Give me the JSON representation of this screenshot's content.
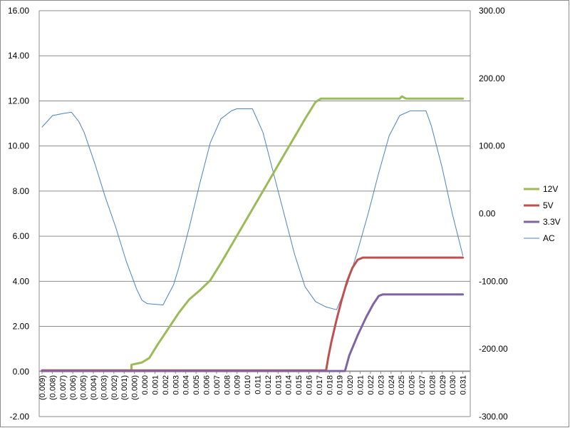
{
  "chart_data": {
    "type": "line",
    "title": "",
    "xlabel": "",
    "ylabel": "",
    "grid": true,
    "legend_position": "right",
    "y_left": {
      "range": [
        -2,
        16
      ],
      "ticks": [
        -2,
        0,
        2,
        4,
        6,
        8,
        10,
        12,
        14,
        16
      ],
      "tick_labels": [
        "-2.00",
        "0.00",
        "2.00",
        "4.00",
        "6.00",
        "8.00",
        "10.00",
        "12.00",
        "14.00",
        "16.00"
      ]
    },
    "y_right": {
      "range": [
        -300,
        300
      ],
      "ticks": [
        -300,
        -200,
        -100,
        0,
        100,
        200,
        300
      ],
      "tick_labels": [
        "-300.00",
        "-200.00",
        "-100.00",
        "0.00",
        "100.00",
        "200.00",
        "300.00"
      ]
    },
    "x": {
      "range": [
        -0.009,
        0.031
      ],
      "tick_labels": [
        "(0.009)",
        "(0.008)",
        "(0.007)",
        "(0.006)",
        "(0.005)",
        "(0.004)",
        "(0.003)",
        "(0.002)",
        "(0.001)",
        "(0.000)",
        "0.000",
        "0.001",
        "0.002",
        "0.003",
        "0.004",
        "0.005",
        "0.006",
        "0.007",
        "0.008",
        "0.009",
        "0.010",
        "0.011",
        "0.012",
        "0.013",
        "0.014",
        "0.015",
        "0.016",
        "0.017",
        "0.018",
        "0.019",
        "0.020",
        "0.021",
        "0.022",
        "0.023",
        "0.024",
        "0.025",
        "0.026",
        "0.027",
        "0.028",
        "0.029",
        "0.030",
        "0.031"
      ]
    },
    "series": [
      {
        "name": "12V",
        "axis": "left",
        "color": "#9bbb59",
        "width": 3,
        "points": [
          [
            -0.009,
            0.05
          ],
          [
            -0.0005,
            0.05
          ],
          [
            -0.0005,
            0.3
          ],
          [
            0.0005,
            0.4
          ],
          [
            0.0012,
            0.6
          ],
          [
            0.002,
            1.2
          ],
          [
            0.003,
            1.9
          ],
          [
            0.004,
            2.6
          ],
          [
            0.005,
            3.2
          ],
          [
            0.006,
            3.6
          ],
          [
            0.007,
            4.05
          ],
          [
            0.008,
            4.8
          ],
          [
            0.009,
            5.6
          ],
          [
            0.01,
            6.4
          ],
          [
            0.011,
            7.2
          ],
          [
            0.012,
            8.0
          ],
          [
            0.013,
            8.8
          ],
          [
            0.014,
            9.6
          ],
          [
            0.015,
            10.4
          ],
          [
            0.016,
            11.2
          ],
          [
            0.017,
            11.95
          ],
          [
            0.0175,
            12.1
          ],
          [
            0.025,
            12.1
          ],
          [
            0.0252,
            12.2
          ],
          [
            0.0256,
            12.1
          ],
          [
            0.031,
            12.1
          ]
        ]
      },
      {
        "name": "5V",
        "axis": "left",
        "color": "#c0504d",
        "width": 3,
        "points": [
          [
            -0.009,
            0.05
          ],
          [
            0.018,
            0.05
          ],
          [
            0.0182,
            0.6
          ],
          [
            0.0185,
            1.3
          ],
          [
            0.019,
            2.3
          ],
          [
            0.0195,
            3.2
          ],
          [
            0.02,
            4.0
          ],
          [
            0.0205,
            4.6
          ],
          [
            0.021,
            4.95
          ],
          [
            0.0215,
            5.05
          ],
          [
            0.031,
            5.05
          ]
        ]
      },
      {
        "name": "3.3V",
        "axis": "left",
        "color": "#8064a2",
        "width": 3,
        "points": [
          [
            -0.009,
            0.02
          ],
          [
            0.0198,
            0.02
          ],
          [
            0.0202,
            0.7
          ],
          [
            0.021,
            1.6
          ],
          [
            0.0218,
            2.4
          ],
          [
            0.0225,
            3.0
          ],
          [
            0.023,
            3.35
          ],
          [
            0.0234,
            3.42
          ],
          [
            0.031,
            3.42
          ]
        ]
      },
      {
        "name": "AC",
        "axis": "right",
        "color": "#4f81bd",
        "width": 1,
        "points": [
          [
            -0.009,
            128
          ],
          [
            -0.008,
            145
          ],
          [
            -0.007,
            148
          ],
          [
            -0.0062,
            150
          ],
          [
            -0.0055,
            136
          ],
          [
            -0.005,
            120
          ],
          [
            -0.004,
            75
          ],
          [
            -0.003,
            25
          ],
          [
            -0.002,
            -20
          ],
          [
            -0.001,
            -70
          ],
          [
            0.0,
            -112
          ],
          [
            0.0005,
            -128
          ],
          [
            0.001,
            -133
          ],
          [
            0.0025,
            -135
          ],
          [
            0.0035,
            -105
          ],
          [
            0.004,
            -80
          ],
          [
            0.005,
            -20
          ],
          [
            0.006,
            45
          ],
          [
            0.007,
            105
          ],
          [
            0.008,
            140
          ],
          [
            0.009,
            152
          ],
          [
            0.0095,
            155
          ],
          [
            0.011,
            155
          ],
          [
            0.012,
            120
          ],
          [
            0.013,
            60
          ],
          [
            0.014,
            0
          ],
          [
            0.015,
            -60
          ],
          [
            0.016,
            -108
          ],
          [
            0.017,
            -130
          ],
          [
            0.018,
            -138
          ],
          [
            0.019,
            -142
          ],
          [
            0.02,
            -105
          ],
          [
            0.0205,
            -80
          ],
          [
            0.021,
            -55
          ],
          [
            0.022,
            0
          ],
          [
            0.023,
            60
          ],
          [
            0.024,
            115
          ],
          [
            0.025,
            145
          ],
          [
            0.026,
            152
          ],
          [
            0.0275,
            152
          ],
          [
            0.028,
            130
          ],
          [
            0.029,
            70
          ],
          [
            0.03,
            0
          ],
          [
            0.031,
            -62
          ]
        ]
      }
    ],
    "legend": [
      {
        "label": "12V",
        "color": "#9bbb59",
        "width": 3
      },
      {
        "label": "5V",
        "color": "#c0504d",
        "width": 3
      },
      {
        "label": "3.3V",
        "color": "#8064a2",
        "width": 3
      },
      {
        "label": "AC",
        "color": "#4f81bd",
        "width": 1
      }
    ],
    "colors": {
      "grid": "#8c8c8c",
      "axis": "#8c8c8c",
      "frame": "#8c8c8c"
    }
  }
}
